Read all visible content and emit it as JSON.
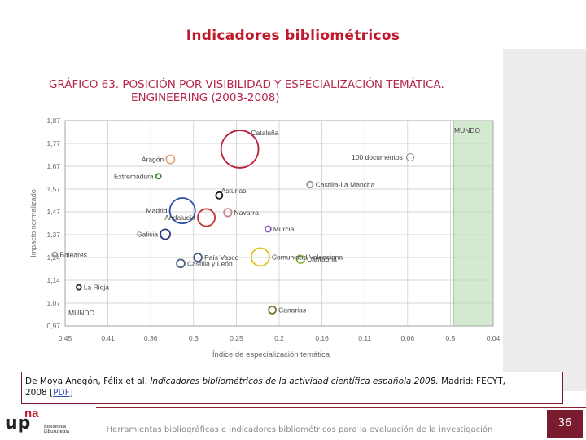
{
  "slide_title": "Indicadores bibliométricos",
  "chart_title_line1": "GRÁFICO 63. POSICIÓN POR VISIBILIDAD Y ESPECIALIZACIÓN TEMÁTICA.",
  "chart_title_line2": "ENGINEERING (2003-2008)",
  "reference": {
    "authors": "De Moya Anegón, Félix et al.",
    "title": "Indicadores bibliométricos de la actividad científica española 2008.",
    "publisher": "Madrid: FECYT,",
    "year": "2008 [",
    "link": "PDF",
    "close": "]"
  },
  "footer": {
    "text": "Herramientas bibliográficas e indicadores bibliométricos para la evaluación de la investigación",
    "page_number": "36",
    "logo_main": "up",
    "logo_accent": "na",
    "logo_sub1": "Biblioteca",
    "logo_sub2": "Liburutegia"
  },
  "colors": {
    "title_red": "#c0192b",
    "chart_title": "#b5244a",
    "mundo_band": "#d4ead0",
    "accent_bar": "#7a1c2e"
  },
  "chart_data": {
    "type": "scatter",
    "title": "GRÁFICO 63. POSICIÓN POR VISIBILIDAD Y ESPECIALIZACIÓN TEMÁTICA. ENGINEERING (2003-2008)",
    "xlabel": "Índice de especialización temática",
    "ylabel": "Impacto normalizado",
    "x_ticks": [
      "0,45",
      "0,41",
      "0,36",
      "0,3",
      "0,25",
      "0,2",
      "0,16",
      "0,11",
      "0,06",
      "0,5",
      "0,04"
    ],
    "y_ticks": [
      "1,87",
      "1,77",
      "1,67",
      "1,57",
      "1,47",
      "1,37",
      "1,24",
      "1,14",
      "1,07",
      "0,97"
    ],
    "grid": true,
    "mundo_label_top": "MUNDO",
    "mundo_label_bottom": "MUNDO",
    "legend": {
      "label": "100 documentos",
      "placement": "top-right"
    },
    "points": [
      {
        "name": "Cataluña",
        "x": 0.246,
        "y": 1.745,
        "size": 2600,
        "color": "#b8233a",
        "label_side": "above"
      },
      {
        "name": "Aragón",
        "x": 0.327,
        "y": 1.7,
        "size": 130,
        "color": "#e6a87a",
        "label_side": "left"
      },
      {
        "name": "Extremadura",
        "x": 0.341,
        "y": 1.626,
        "size": 40,
        "color": "#3a8a3a",
        "label_side": "left"
      },
      {
        "name": "Castilla-La Mancha",
        "x": 0.164,
        "y": 1.59,
        "size": 70,
        "color": "#9098a8",
        "label_side": "right"
      },
      {
        "name": "Asturias",
        "x": 0.27,
        "y": 1.542,
        "size": 80,
        "color": "#1e1e1e",
        "label_side": "above"
      },
      {
        "name": "Madrid",
        "x": 0.313,
        "y": 1.475,
        "size": 1200,
        "color": "#2b4fa8",
        "label_side": "left"
      },
      {
        "name": "Andalucía",
        "x": 0.285,
        "y": 1.445,
        "size": 550,
        "color": "#c53030",
        "label_side": "left"
      },
      {
        "name": "Navarra",
        "x": 0.26,
        "y": 1.467,
        "size": 110,
        "color": "#c8808a",
        "label_side": "right"
      },
      {
        "name": "Galicia",
        "x": 0.333,
        "y": 1.372,
        "size": 180,
        "color": "#2f3e82",
        "label_side": "left"
      },
      {
        "name": "Murcia",
        "x": 0.213,
        "y": 1.395,
        "size": 60,
        "color": "#7a5ab8",
        "label_side": "right"
      },
      {
        "name": "Baleares",
        "x": 0.462,
        "y": 1.282,
        "size": 35,
        "color": "#8a8f99",
        "label_side": "right"
      },
      {
        "name": "País Vasco",
        "x": 0.295,
        "y": 1.27,
        "size": 120,
        "color": "#4a6080",
        "label_side": "right"
      },
      {
        "name": "Castilla y León",
        "x": 0.315,
        "y": 1.244,
        "size": 120,
        "color": "#4a6080",
        "label_side": "right"
      },
      {
        "name": "Comunidad Valenciana",
        "x": 0.222,
        "y": 1.272,
        "size": 600,
        "color": "#e5bf1a",
        "label_side": "right"
      },
      {
        "name": "Cantabria",
        "x": 0.175,
        "y": 1.262,
        "size": 110,
        "color": "#8cb838",
        "label_side": "right"
      },
      {
        "name": "La Rioja",
        "x": 0.434,
        "y": 1.139,
        "size": 10,
        "color": "#333333",
        "label_side": "right"
      },
      {
        "name": "Canarias",
        "x": 0.208,
        "y": 1.04,
        "size": 100,
        "color": "#7a7030",
        "label_side": "right"
      }
    ]
  }
}
